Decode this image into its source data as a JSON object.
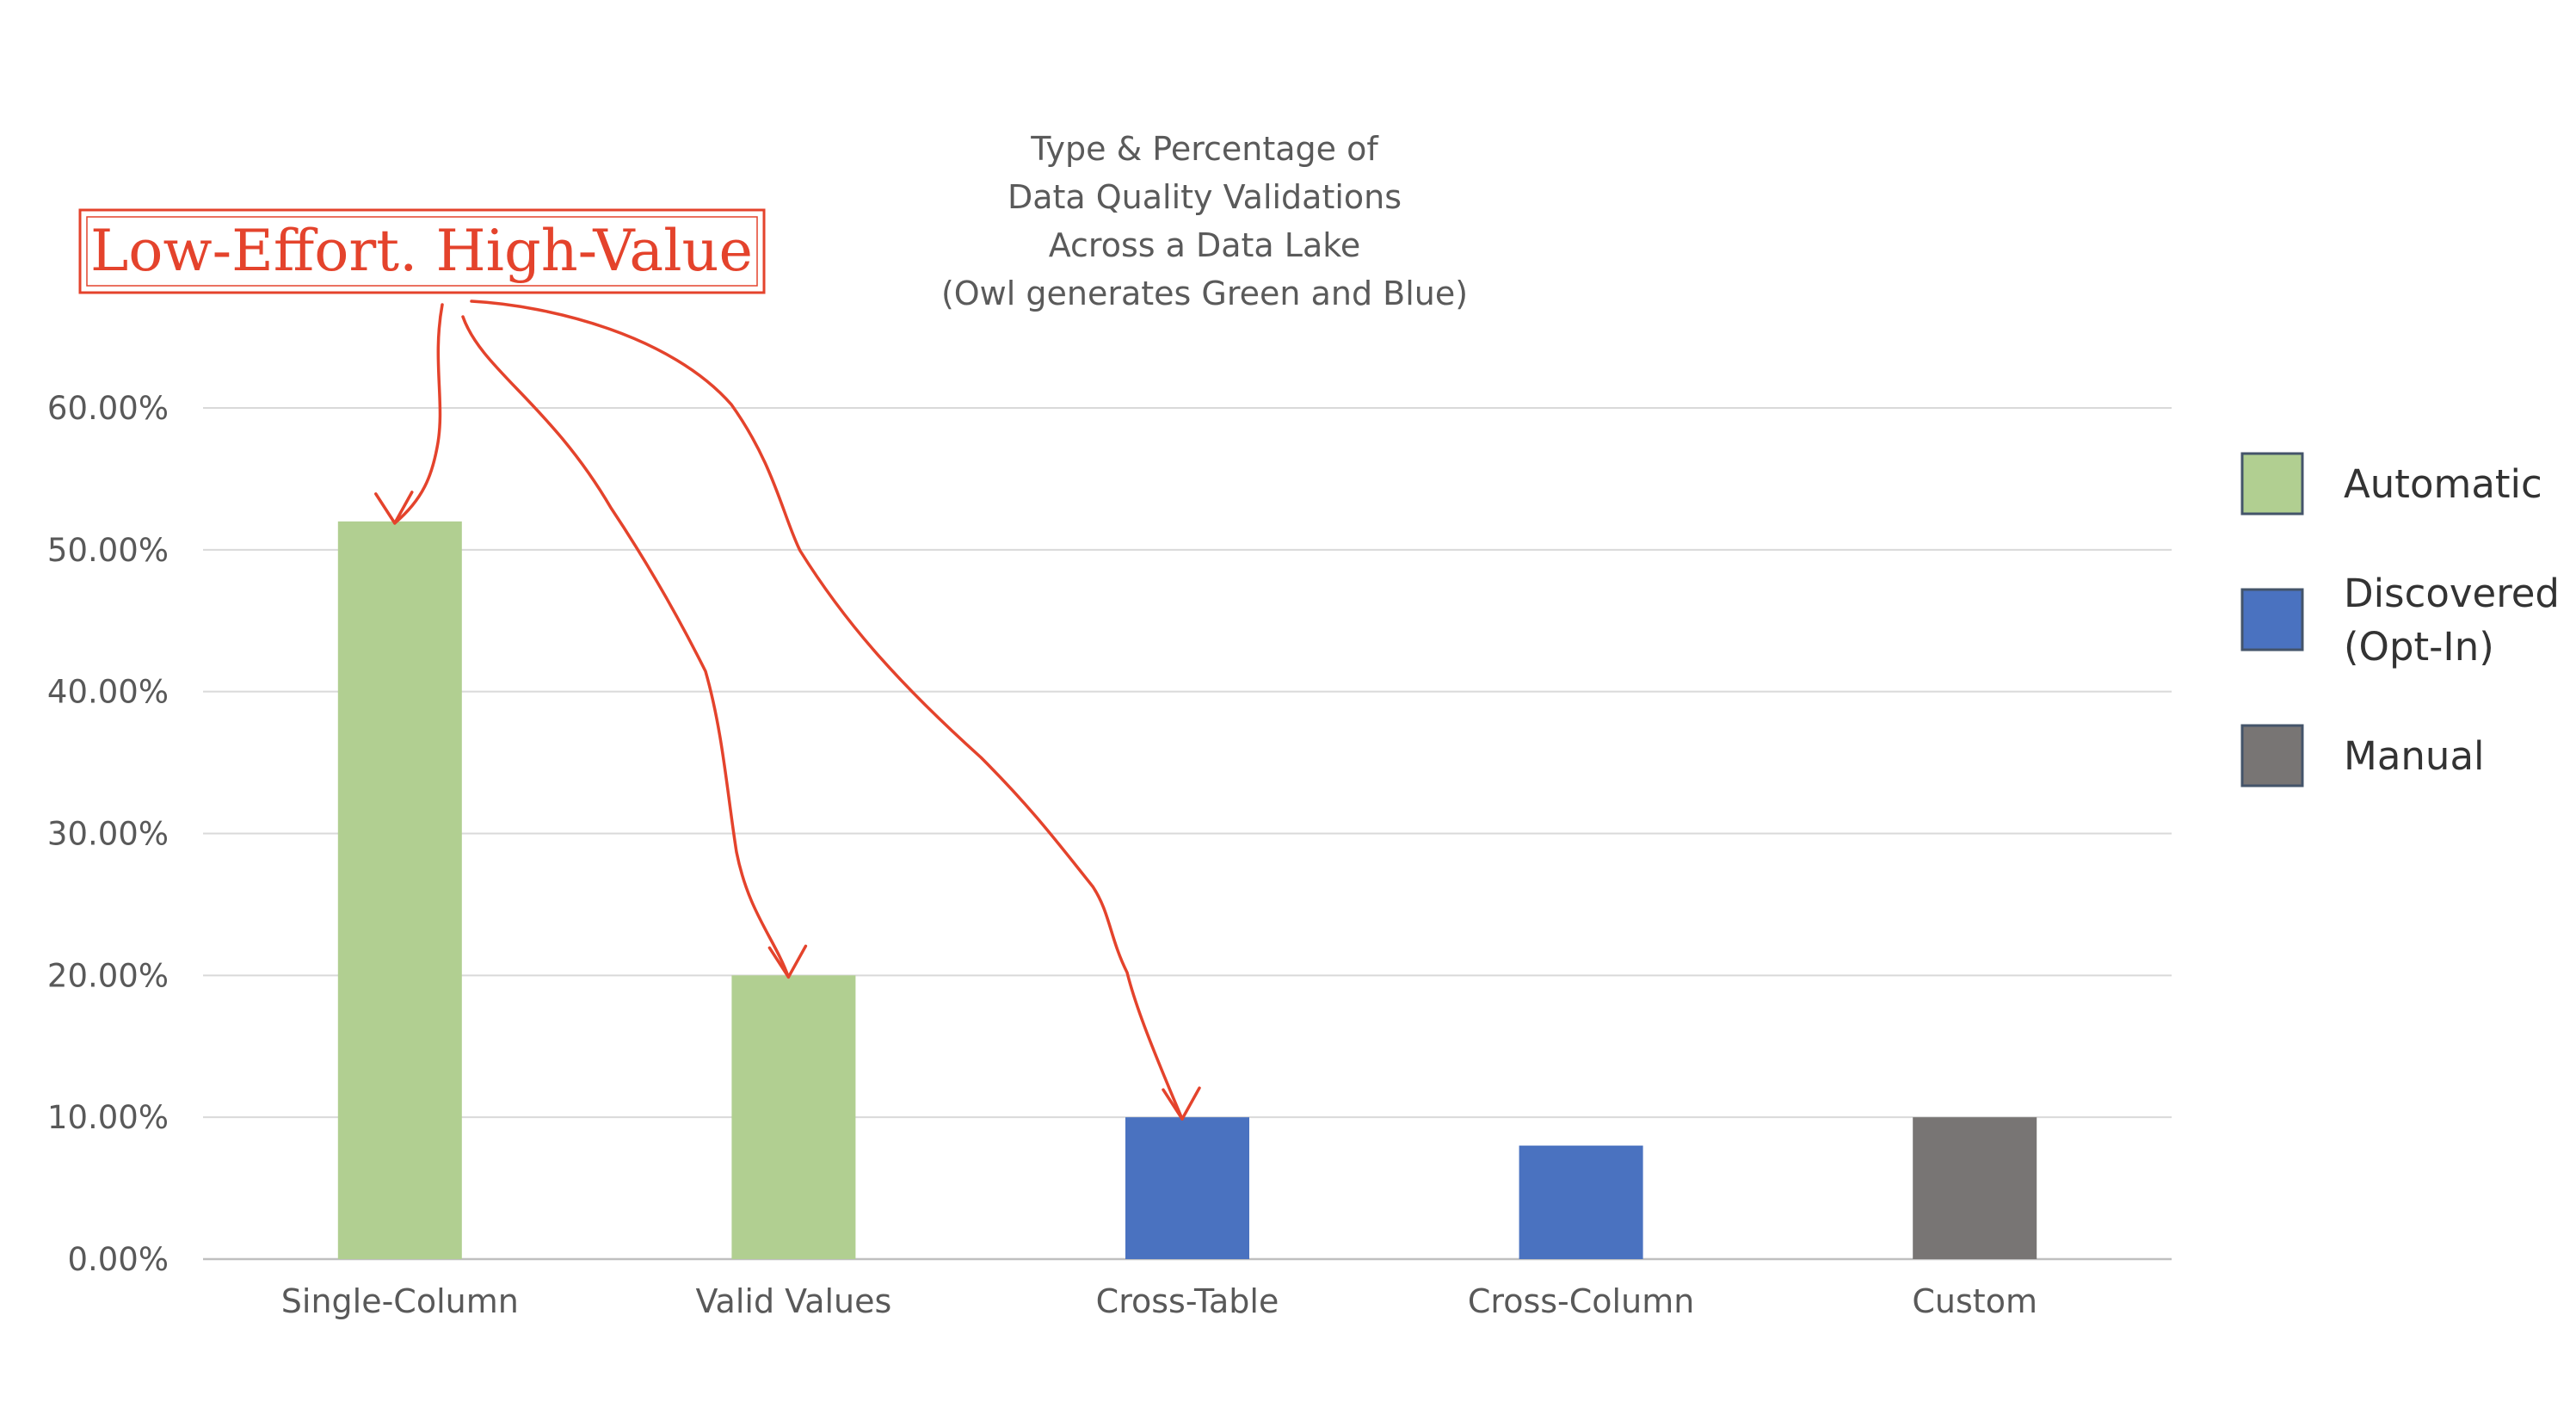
{
  "chart_data": {
    "type": "bar",
    "title_lines": [
      "Type & Percentage of",
      "Data Quality Validations",
      "Across a Data Lake",
      "(Owl generates Green and Blue)"
    ],
    "categories": [
      "Single-Column",
      "Valid Values",
      "Cross-Table",
      "Cross-Column",
      "Custom"
    ],
    "values": [
      52,
      20,
      10,
      8,
      10
    ],
    "value_unit": "percent",
    "bar_groups": [
      "Automatic",
      "Automatic",
      "Discovered (Opt-In)",
      "Discovered (Opt-In)",
      "Manual"
    ],
    "ylim": [
      0,
      60
    ],
    "yticks": [
      0,
      10,
      20,
      30,
      40,
      50,
      60
    ],
    "ytick_labels": [
      "0.00%",
      "10.00%",
      "20.00%",
      "30.00%",
      "40.00%",
      "50.00%",
      "60.00%"
    ],
    "grid": true,
    "legend_position": "right",
    "legend": [
      {
        "name": "Automatic",
        "lines": [
          "Automatic"
        ],
        "color": "#b1cf91"
      },
      {
        "name": "Discovered (Opt-In)",
        "lines": [
          "Discovered",
          "(Opt-In)"
        ],
        "color": "#4a72c0"
      },
      {
        "name": "Manual",
        "lines": [
          "Manual"
        ],
        "color": "#787574"
      }
    ],
    "annotation": {
      "text": "Low-Effort. High-Value",
      "color": "#e4432c",
      "points_to": [
        "Single-Column",
        "Valid Values",
        "Cross-Table"
      ]
    }
  }
}
